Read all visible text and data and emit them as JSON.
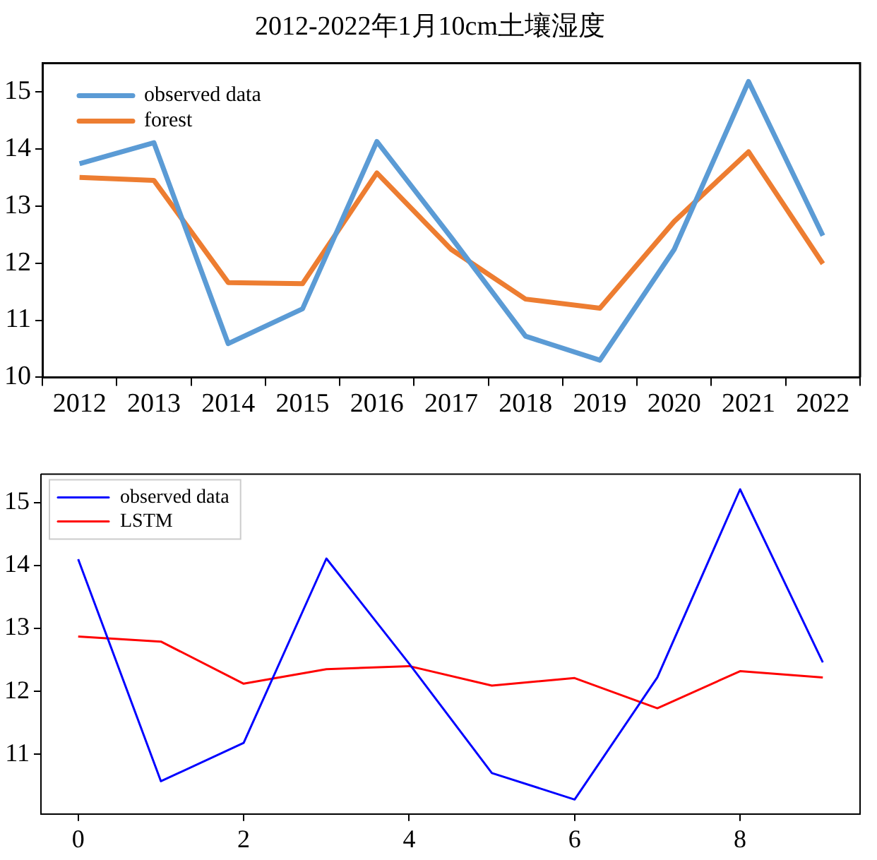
{
  "chart_data": [
    {
      "type": "line",
      "title": "2012-2022年1月10cm土壤湿度",
      "categories": [
        "2012",
        "2013",
        "2014",
        "2015",
        "2016",
        "2017",
        "2018",
        "2019",
        "2020",
        "2021",
        "2022"
      ],
      "series": [
        {
          "name": "observed data",
          "color": "#5b9bd5",
          "values": [
            13.74,
            14.11,
            10.59,
            11.2,
            14.13,
            12.45,
            10.72,
            10.3,
            12.24,
            15.18,
            12.48
          ]
        },
        {
          "name": "forest",
          "color": "#ed7d31",
          "values": [
            13.5,
            13.45,
            11.66,
            11.64,
            13.58,
            12.24,
            11.37,
            11.21,
            12.73,
            13.95,
            11.99
          ]
        }
      ],
      "ylim": [
        10,
        15.5
      ],
      "yticks": [
        10,
        11,
        12,
        13,
        14,
        15
      ],
      "grid": false,
      "legend": "top left"
    },
    {
      "type": "line",
      "x": [
        0,
        1,
        2,
        3,
        4,
        5,
        6,
        7,
        8,
        9
      ],
      "series": [
        {
          "name": "observed data",
          "color": "#0000ff",
          "values": [
            14.1,
            10.57,
            11.18,
            14.11,
            12.44,
            10.7,
            10.28,
            12.22,
            15.21,
            12.46
          ]
        },
        {
          "name": "LSTM",
          "color": "#ff0000",
          "values": [
            12.87,
            12.79,
            12.12,
            12.35,
            12.4,
            12.09,
            12.21,
            11.73,
            12.32,
            12.22
          ]
        }
      ],
      "xlim": [
        -0.45,
        9.45
      ],
      "xticks": [
        0,
        2,
        4,
        6,
        8
      ],
      "ylim": [
        10.05,
        15.45
      ],
      "yticks": [
        11,
        12,
        13,
        14,
        15
      ],
      "grid": false,
      "legend": "top left"
    }
  ]
}
